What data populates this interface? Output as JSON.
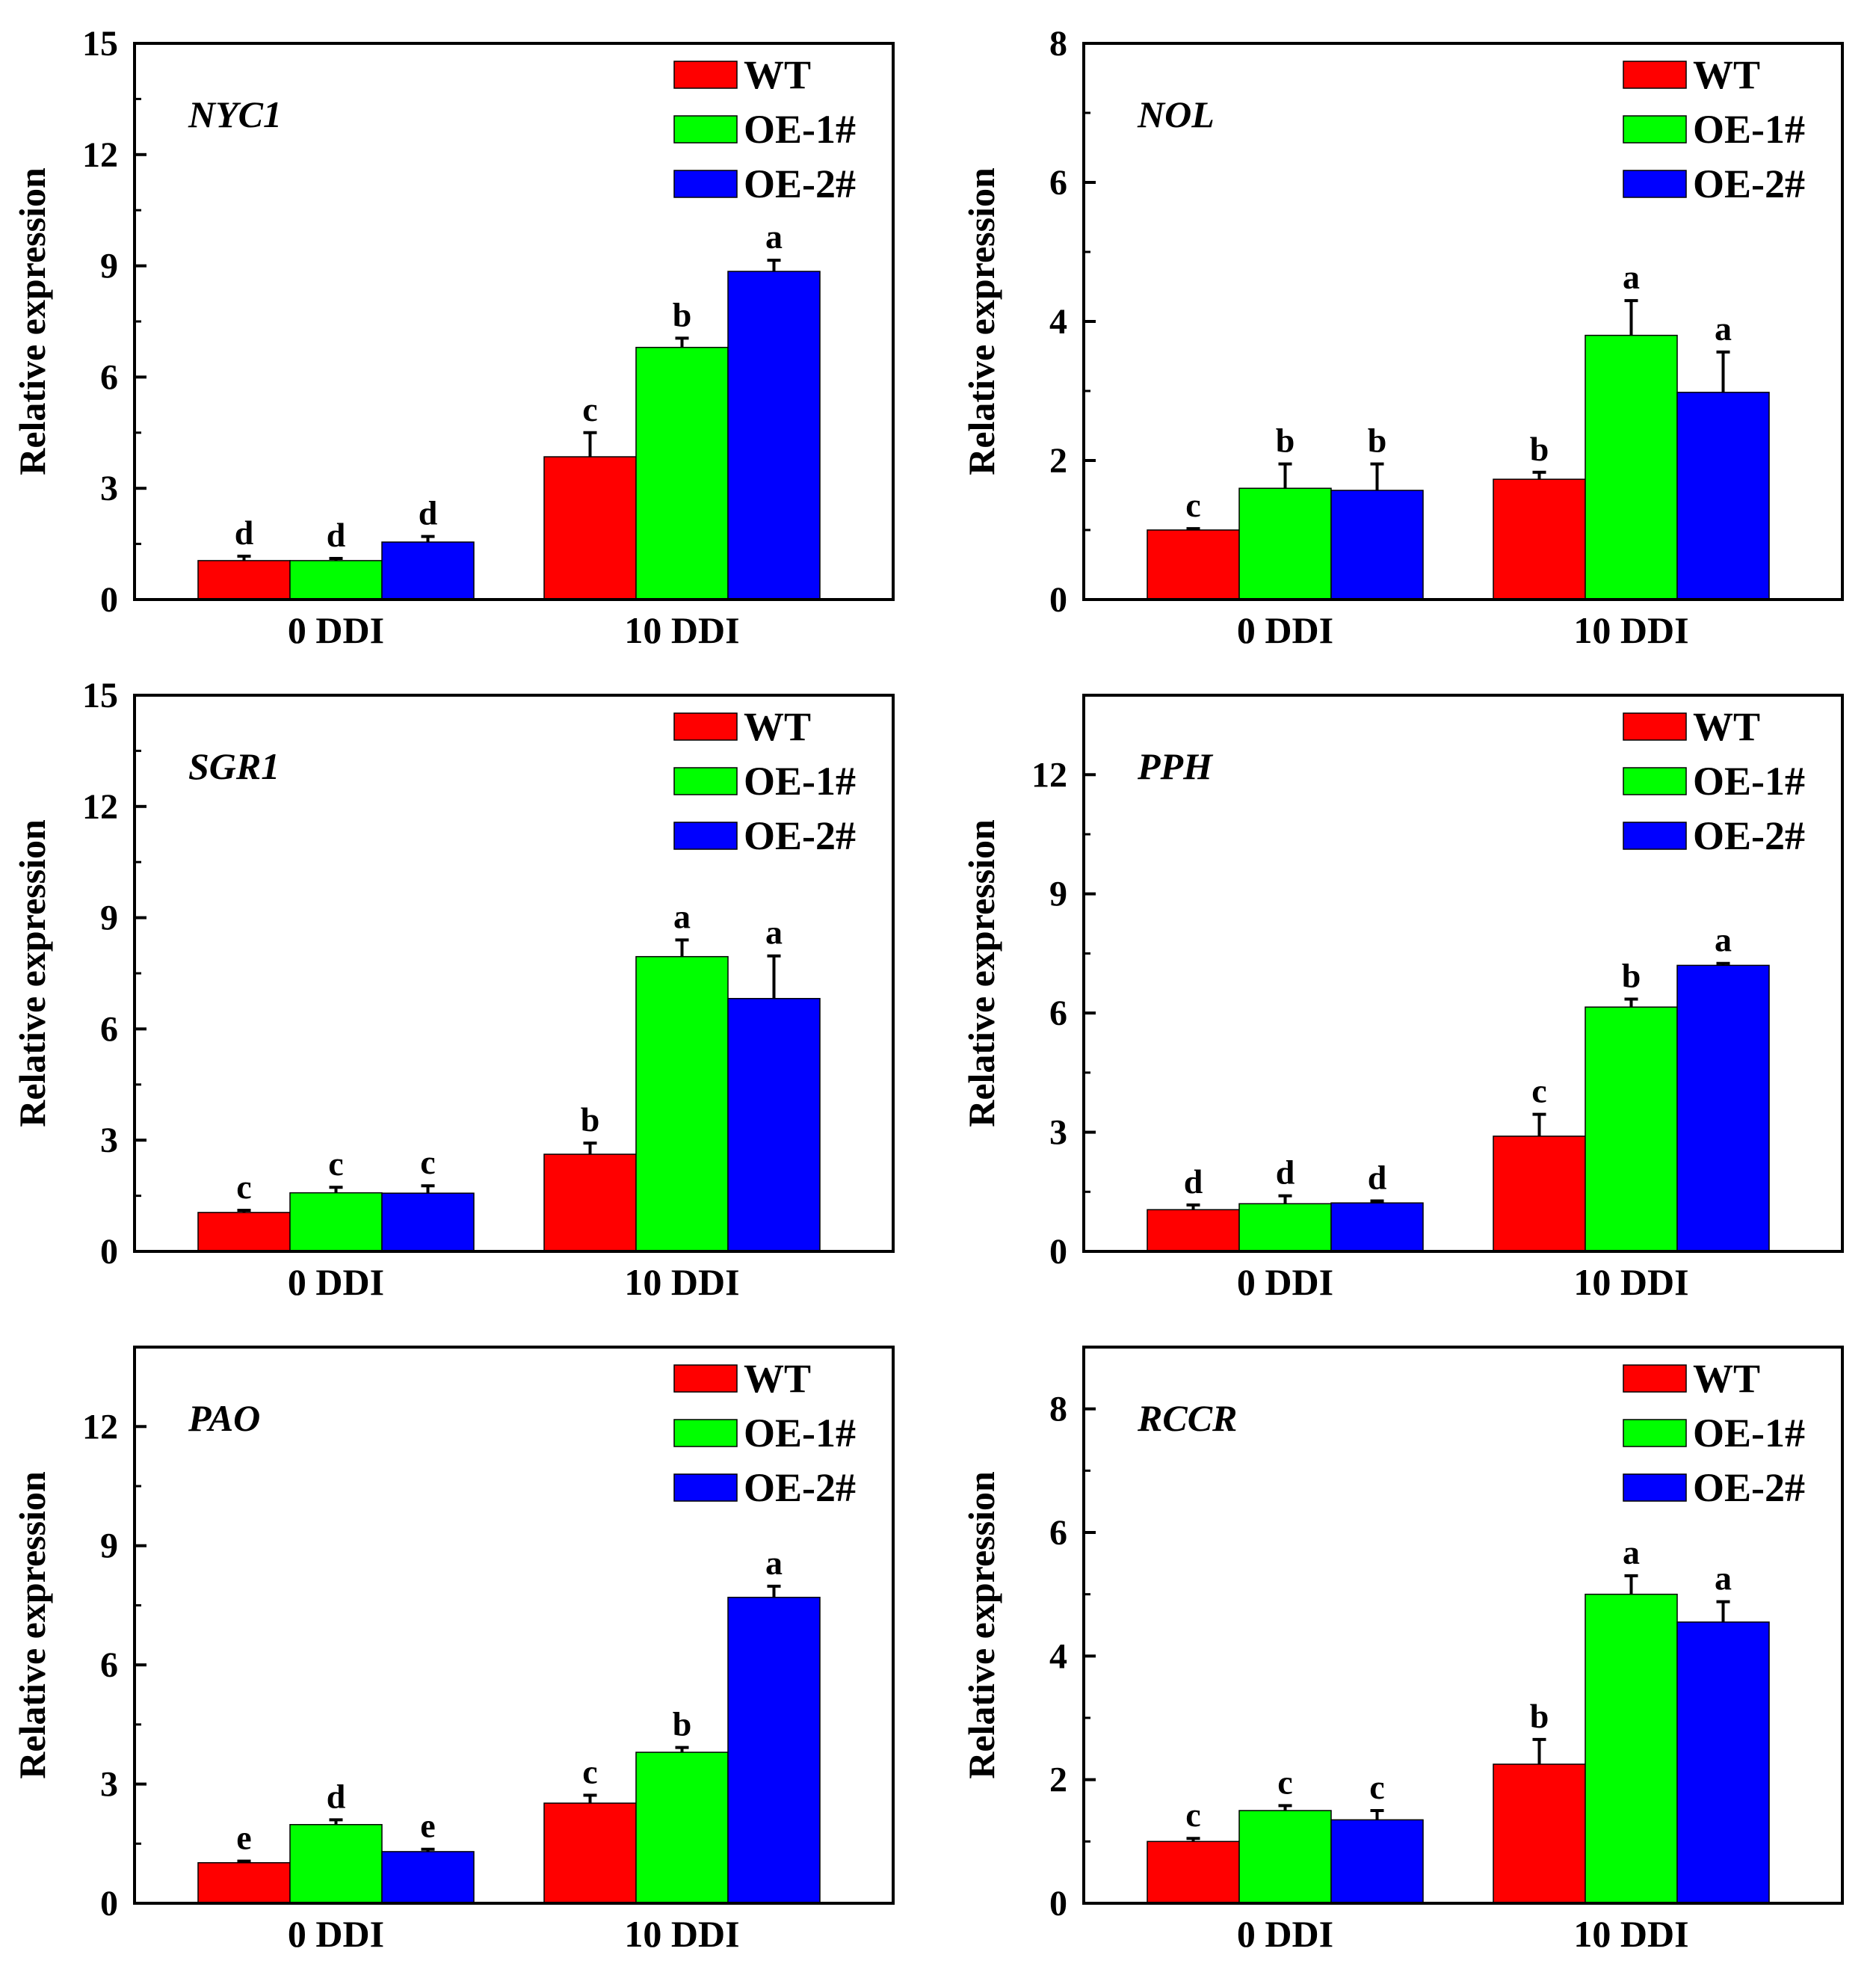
{
  "colors": {
    "WT": "#ff0000",
    "OE-1#": "#00ff00",
    "OE-2#": "#0000ff",
    "axis": "#000000"
  },
  "chart_data": [
    {
      "type": "bar",
      "gene": "NYC1",
      "ylabel": "Relative expression",
      "ylim": [
        0,
        15
      ],
      "yticks": [
        0,
        3,
        6,
        9,
        12,
        15
      ],
      "categories": [
        "0 DDI",
        "10 DDI"
      ],
      "legend": [
        "WT",
        "OE-1#",
        "OE-2#"
      ],
      "series": [
        {
          "name": "WT",
          "values": [
            1.05,
            3.85
          ],
          "errors": [
            0.12,
            0.65
          ],
          "letters": [
            "d",
            "c"
          ]
        },
        {
          "name": "OE-1#",
          "values": [
            1.05,
            6.8
          ],
          "errors": [
            0.06,
            0.25
          ],
          "letters": [
            "d",
            "b"
          ]
        },
        {
          "name": "OE-2#",
          "values": [
            1.55,
            8.85
          ],
          "errors": [
            0.15,
            0.3
          ],
          "letters": [
            "d",
            "a"
          ]
        }
      ]
    },
    {
      "type": "bar",
      "gene": "NOL",
      "ylabel": "Relative expression",
      "ylim": [
        0,
        8
      ],
      "yticks": [
        0,
        2,
        4,
        6,
        8
      ],
      "categories": [
        "0 DDI",
        "10 DDI"
      ],
      "legend": [
        "WT",
        "OE-1#",
        "OE-2#"
      ],
      "series": [
        {
          "name": "WT",
          "values": [
            1.0,
            1.73
          ],
          "errors": [
            0.02,
            0.1
          ],
          "letters": [
            "c",
            "b"
          ]
        },
        {
          "name": "OE-1#",
          "values": [
            1.6,
            3.8
          ],
          "errors": [
            0.35,
            0.5
          ],
          "letters": [
            "b",
            "a"
          ]
        },
        {
          "name": "OE-2#",
          "values": [
            1.57,
            2.98
          ],
          "errors": [
            0.38,
            0.58
          ],
          "letters": [
            "b",
            "a"
          ]
        }
      ]
    },
    {
      "type": "bar",
      "gene": "SGR1",
      "ylabel": "Relative expression",
      "ylim": [
        0,
        15
      ],
      "yticks": [
        0,
        3,
        6,
        9,
        12,
        15
      ],
      "categories": [
        "0 DDI",
        "10 DDI"
      ],
      "legend": [
        "WT",
        "OE-1#",
        "OE-2#"
      ],
      "series": [
        {
          "name": "WT",
          "values": [
            1.05,
            2.62
          ],
          "errors": [
            0.06,
            0.3
          ],
          "letters": [
            "c",
            "b"
          ]
        },
        {
          "name": "OE-1#",
          "values": [
            1.58,
            7.95
          ],
          "errors": [
            0.15,
            0.45
          ],
          "letters": [
            "c",
            "a"
          ]
        },
        {
          "name": "OE-2#",
          "values": [
            1.57,
            6.82
          ],
          "errors": [
            0.2,
            1.15
          ],
          "letters": [
            "c",
            "a"
          ]
        }
      ]
    },
    {
      "type": "bar",
      "gene": "PPH",
      "ylabel": "Relative expression",
      "ylim": [
        0,
        14
      ],
      "yticks": [
        0,
        3,
        6,
        9,
        12
      ],
      "categories": [
        "0 DDI",
        "10 DDI"
      ],
      "legend": [
        "WT",
        "OE-1#",
        "OE-2#"
      ],
      "series": [
        {
          "name": "WT",
          "values": [
            1.05,
            2.9
          ],
          "errors": [
            0.12,
            0.55
          ],
          "letters": [
            "d",
            "c"
          ]
        },
        {
          "name": "OE-1#",
          "values": [
            1.2,
            6.15
          ],
          "errors": [
            0.2,
            0.2
          ],
          "letters": [
            "d",
            "b"
          ]
        },
        {
          "name": "OE-2#",
          "values": [
            1.22,
            7.2
          ],
          "errors": [
            0.05,
            0.05
          ],
          "letters": [
            "d",
            "a"
          ]
        }
      ]
    },
    {
      "type": "bar",
      "gene": "PAO",
      "ylabel": "Relative expression",
      "ylim": [
        0,
        14
      ],
      "yticks": [
        0,
        3,
        6,
        9,
        12
      ],
      "categories": [
        "0 DDI",
        "10 DDI"
      ],
      "legend": [
        "WT",
        "OE-1#",
        "OE-2#"
      ],
      "series": [
        {
          "name": "WT",
          "values": [
            1.02,
            2.52
          ],
          "errors": [
            0.04,
            0.2
          ],
          "letters": [
            "e",
            "c"
          ]
        },
        {
          "name": "OE-1#",
          "values": [
            1.98,
            3.8
          ],
          "errors": [
            0.12,
            0.12
          ],
          "letters": [
            "d",
            "b"
          ]
        },
        {
          "name": "OE-2#",
          "values": [
            1.3,
            7.7
          ],
          "errors": [
            0.06,
            0.28
          ],
          "letters": [
            "e",
            "a"
          ]
        }
      ]
    },
    {
      "type": "bar",
      "gene": "RCCR",
      "ylabel": "Relative expression",
      "ylim": [
        0,
        9
      ],
      "yticks": [
        0,
        2,
        4,
        6,
        8
      ],
      "categories": [
        "0 DDI",
        "10 DDI"
      ],
      "legend": [
        "WT",
        "OE-1#",
        "OE-2#"
      ],
      "series": [
        {
          "name": "WT",
          "values": [
            1.0,
            2.25
          ],
          "errors": [
            0.05,
            0.4
          ],
          "letters": [
            "c",
            "b"
          ]
        },
        {
          "name": "OE-1#",
          "values": [
            1.5,
            5.0
          ],
          "errors": [
            0.08,
            0.3
          ],
          "letters": [
            "c",
            "a"
          ]
        },
        {
          "name": "OE-2#",
          "values": [
            1.35,
            4.55
          ],
          "errors": [
            0.15,
            0.33
          ],
          "letters": [
            "c",
            "a"
          ]
        }
      ]
    }
  ]
}
